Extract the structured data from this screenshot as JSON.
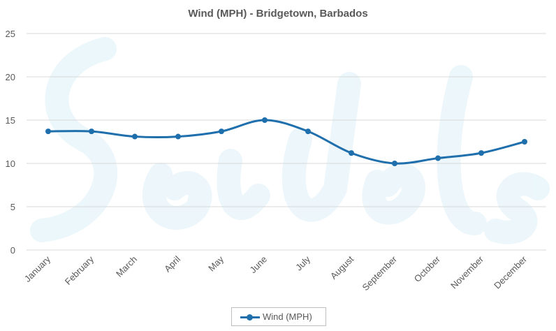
{
  "chart_data": {
    "type": "line",
    "title": "Wind (MPH) - Bridgetown, Barbados",
    "categories": [
      "January",
      "February",
      "March",
      "April",
      "May",
      "June",
      "July",
      "August",
      "September",
      "October",
      "November",
      "December"
    ],
    "series": [
      {
        "name": "Wind (MPH)",
        "values": [
          13.7,
          13.7,
          13.1,
          13.1,
          13.7,
          15.0,
          13.7,
          11.2,
          10.0,
          10.6,
          11.2,
          12.5
        ],
        "color": "#1f6fad"
      }
    ],
    "xlabel": "",
    "ylabel": "",
    "ylim": [
      0,
      25
    ],
    "yticks": [
      0,
      5,
      10,
      15,
      20,
      25
    ],
    "grid": true,
    "smooth": true,
    "legend": "bottom-center"
  },
  "colors": {
    "line": "#1f6fad",
    "grid": "#d9d9d9",
    "text": "#595959",
    "watermark": "#eaf6fb"
  }
}
